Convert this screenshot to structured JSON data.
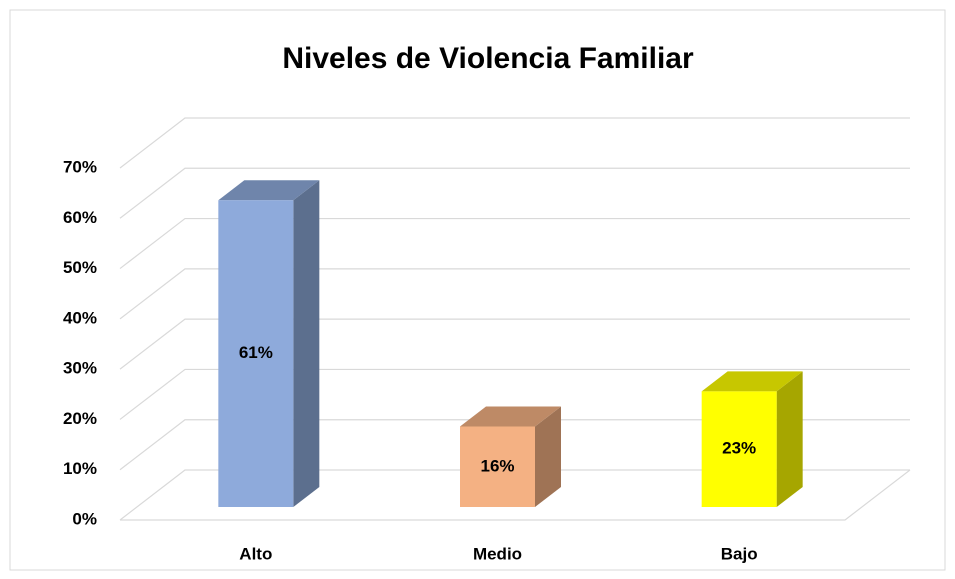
{
  "chart_data": {
    "type": "bar3d",
    "title": "Niveles de Violencia Familiar",
    "categories": [
      "Alto",
      "Medio",
      "Bajo"
    ],
    "values": [
      61,
      16,
      23
    ],
    "value_labels": [
      "61%",
      "16%",
      "23%"
    ],
    "colors": [
      "#8eaadb",
      "#f4b183",
      "#ffff00"
    ],
    "ylim": [
      0,
      70
    ],
    "yticks": [
      {
        "value": 0,
        "label": "0%"
      },
      {
        "value": 10,
        "label": "10%"
      },
      {
        "value": 20,
        "label": "20%"
      },
      {
        "value": 30,
        "label": "30%"
      },
      {
        "value": 40,
        "label": "40%"
      },
      {
        "value": 50,
        "label": "50%"
      },
      {
        "value": 60,
        "label": "60%"
      },
      {
        "value": 70,
        "label": "70%"
      }
    ],
    "grid": true
  }
}
